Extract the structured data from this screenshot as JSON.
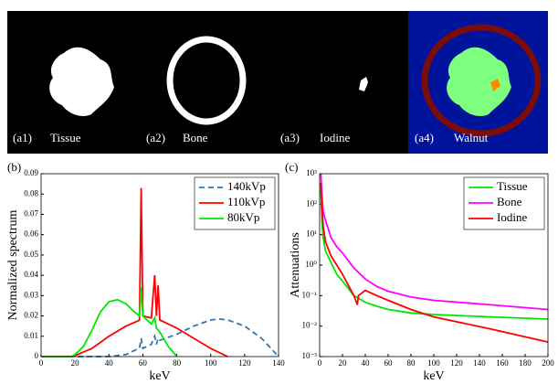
{
  "panels": [
    {
      "label": "(a1)",
      "name": "Tissue"
    },
    {
      "label": "(a2)",
      "name": "Bone"
    },
    {
      "label": "(a3)",
      "name": "Iodine"
    },
    {
      "label": "(a4)",
      "name": "Walnut"
    }
  ],
  "chart_data": [
    {
      "type": "line",
      "label": "(b)",
      "x_label": "keV",
      "y_label": "Normalized spectrum",
      "xlim": [
        0,
        140
      ],
      "xticks": [
        0,
        20,
        40,
        60,
        80,
        100,
        120,
        140
      ],
      "ylim": [
        0,
        0.09
      ],
      "yticks": [
        0,
        0.01,
        0.02,
        0.03,
        0.04,
        0.05,
        0.06,
        0.07,
        0.08,
        0.09
      ],
      "log_y": false,
      "legend": "top-right",
      "series": [
        {
          "name": "140kVp",
          "color": "#2e75b6",
          "dashed": true,
          "x": [
            0,
            40,
            50,
            55,
            58,
            59,
            60,
            65,
            67,
            68,
            69,
            70,
            80,
            90,
            100,
            105,
            110,
            120,
            130,
            140
          ],
          "values": [
            0,
            0,
            0.001,
            0.003,
            0.004,
            0.009,
            0.004,
            0.006,
            0.01,
            0.006,
            0.009,
            0.008,
            0.011,
            0.015,
            0.018,
            0.0185,
            0.018,
            0.015,
            0.009,
            0
          ]
        },
        {
          "name": "110kVp",
          "color": "#ff0000",
          "dashed": false,
          "x": [
            0,
            18,
            20,
            30,
            40,
            50,
            57,
            58,
            59,
            60,
            65,
            67,
            68,
            69,
            70,
            75,
            80,
            90,
            100,
            110
          ],
          "values": [
            0,
            0,
            0.0005,
            0.004,
            0.01,
            0.015,
            0.0175,
            0.018,
            0.083,
            0.02,
            0.019,
            0.04,
            0.02,
            0.035,
            0.018,
            0.016,
            0.014,
            0.009,
            0.004,
            0
          ]
        },
        {
          "name": "80kVp",
          "color": "#00e600",
          "dashed": false,
          "x": [
            0,
            18,
            20,
            25,
            30,
            35,
            40,
            45,
            50,
            55,
            58,
            59,
            60,
            65,
            67,
            68,
            70,
            75,
            80
          ],
          "values": [
            0,
            0,
            0.001,
            0.005,
            0.013,
            0.022,
            0.027,
            0.028,
            0.026,
            0.022,
            0.02,
            0.034,
            0.02,
            0.016,
            0.019,
            0.014,
            0.012,
            0.005,
            0
          ]
        }
      ]
    },
    {
      "type": "line",
      "label": "(c)",
      "x_label": "keV",
      "y_label": "Attenuations",
      "xlim": [
        0,
        200
      ],
      "xticks": [
        0,
        20,
        40,
        60,
        80,
        100,
        120,
        140,
        160,
        180,
        200
      ],
      "ylim": [
        0.001,
        1000
      ],
      "yticks": [
        {
          "value": 0.001,
          "label": "10⁻³"
        },
        {
          "value": 0.01,
          "label": "10⁻²"
        },
        {
          "value": 0.1,
          "label": "10⁻¹"
        },
        {
          "value": 1,
          "label": "10⁰"
        },
        {
          "value": 10,
          "label": "10¹"
        },
        {
          "value": 100,
          "label": "10²"
        },
        {
          "value": 1000,
          "label": "10³"
        }
      ],
      "log_y": true,
      "legend": "top-right",
      "series": [
        {
          "name": "Tissue",
          "color": "#00e600",
          "dashed": false,
          "x": [
            1,
            2,
            3,
            5,
            10,
            15,
            20,
            30,
            40,
            50,
            60,
            80,
            100,
            150,
            200
          ],
          "values": [
            300,
            30,
            8,
            3,
            1.2,
            0.5,
            0.3,
            0.1,
            0.06,
            0.045,
            0.035,
            0.027,
            0.024,
            0.02,
            0.017
          ]
        },
        {
          "name": "Bone",
          "color": "#ff00ff",
          "dashed": false,
          "x": [
            1,
            2,
            3,
            5,
            10,
            15,
            20,
            30,
            40,
            50,
            60,
            80,
            100,
            150,
            200
          ],
          "values": [
            1000,
            200,
            60,
            30,
            8,
            4,
            2.5,
            0.8,
            0.35,
            0.2,
            0.14,
            0.09,
            0.07,
            0.05,
            0.035
          ]
        },
        {
          "name": "Iodine",
          "color": "#ff0000",
          "dashed": false,
          "x": [
            1,
            2,
            3,
            5,
            10,
            15,
            20,
            30,
            33,
            34,
            40,
            50,
            60,
            80,
            100,
            150,
            200
          ],
          "values": [
            500,
            80,
            20,
            6,
            2,
            1,
            0.5,
            0.1,
            0.05,
            0.1,
            0.15,
            0.1,
            0.07,
            0.035,
            0.02,
            0.008,
            0.003
          ]
        }
      ]
    }
  ]
}
